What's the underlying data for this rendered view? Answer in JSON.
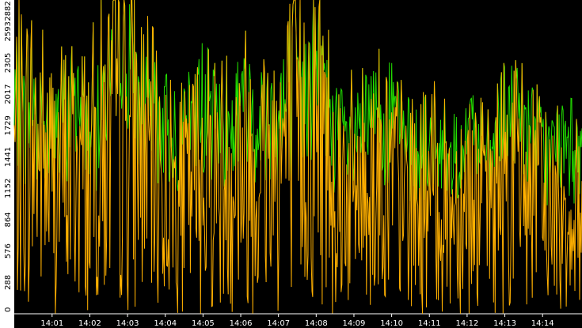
{
  "chart_data": {
    "type": "line",
    "title": "",
    "xlabel": "",
    "ylabel": "",
    "ylim": [
      0,
      2882
    ],
    "yticks": [
      0,
      288,
      576,
      864,
      1152,
      1441,
      1729,
      2017,
      2305,
      2593,
      2882
    ],
    "x_tick_labels": [
      "14:01",
      "14:02",
      "14:03",
      "14:04",
      "14:05",
      "14:06",
      "14:07",
      "14:08",
      "14:09",
      "14:10",
      "14:11",
      "14:12",
      "14:13",
      "14:14"
    ],
    "x_start_minute": 14.0,
    "x_end_minute": 14.15,
    "grid": false,
    "legend": "none",
    "colors": {
      "background": "#000000",
      "axis_panel": "#ffffff",
      "tick_text": "#ffffff",
      "series_upper": "#22dd00",
      "series_lower": "#ffb000"
    },
    "series": [
      {
        "color": "#22dd00",
        "description": "upper envelope (green)",
        "x_minutes": [
          0.0,
          0.5,
          1.0,
          1.5,
          2.0,
          2.5,
          3.0,
          3.5,
          4.0,
          4.5,
          5.0,
          5.5,
          6.0,
          6.5,
          7.0,
          7.5,
          8.0,
          8.5,
          9.0,
          9.5,
          10.0,
          10.5,
          11.0,
          11.5,
          12.0,
          12.5,
          13.0,
          13.5,
          14.0,
          14.5,
          15.0
        ],
        "values": [
          2050,
          2150,
          1750,
          2200,
          1900,
          2350,
          2650,
          2150,
          2050,
          1950,
          2350,
          1850,
          2250,
          2050,
          2200,
          2300,
          2500,
          1950,
          1800,
          2150,
          2100,
          1750,
          1850,
          1650,
          1900,
          1600,
          2150,
          2050,
          1750,
          1800,
          1850
        ]
      },
      {
        "color": "#ffb000",
        "description": "main trace (orange)",
        "x_minutes": [
          0.0,
          0.5,
          1.0,
          1.5,
          2.0,
          2.5,
          3.0,
          3.5,
          4.0,
          4.5,
          5.0,
          5.5,
          6.0,
          6.5,
          7.0,
          7.5,
          8.0,
          8.5,
          9.0,
          9.5,
          10.0,
          10.5,
          11.0,
          11.5,
          12.0,
          12.5,
          13.0,
          13.5,
          14.0,
          14.5,
          15.0
        ],
        "values": [
          1450,
          1550,
          1250,
          1350,
          1300,
          1600,
          1750,
          1400,
          1150,
          1050,
          1350,
          1250,
          1400,
          1350,
          1500,
          1600,
          1800,
          1250,
          1100,
          1300,
          1200,
          1000,
          1100,
          950,
          1150,
          950,
          1300,
          1200,
          1000,
          950,
          900
        ]
      }
    ]
  }
}
